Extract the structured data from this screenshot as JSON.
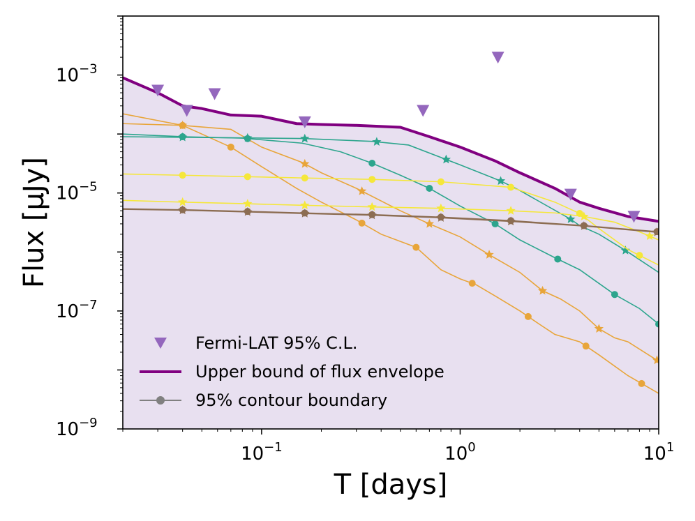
{
  "chart_data": {
    "type": "line",
    "xlabel": "T [days]",
    "ylabel": "Flux [μJy]",
    "xscale": "log",
    "yscale": "log",
    "xlim": [
      0.02,
      10
    ],
    "ylim": [
      1e-09,
      0.01
    ],
    "x_ticks": [
      {
        "value": 0.1,
        "base": "10",
        "exp": "−1"
      },
      {
        "value": 1,
        "base": "10",
        "exp": "0"
      },
      {
        "value": 10,
        "base": "10",
        "exp": "1"
      }
    ],
    "y_ticks": [
      {
        "value": 1e-09,
        "base": "10",
        "exp": "−9"
      },
      {
        "value": 1e-07,
        "base": "10",
        "exp": "−7"
      },
      {
        "value": 1e-05,
        "base": "10",
        "exp": "−5"
      },
      {
        "value": 0.001,
        "base": "10",
        "exp": "−3"
      }
    ],
    "envelope_fill_color": "#e8e0f0",
    "fermi_upper_limits": {
      "name": "Fermi-LAT 95% C.L.",
      "color": "#9467bd",
      "x": [
        0.03,
        0.042,
        0.058,
        0.165,
        0.65,
        1.55,
        3.6,
        7.5
      ],
      "y": [
        0.00055,
        0.00025,
        0.00048,
        0.00016,
        0.00025,
        0.002,
        9.5e-06,
        4e-06
      ]
    },
    "upper_bound": {
      "name": "Upper bound of flux envelope",
      "color": "#800080",
      "x": [
        0.02,
        0.03,
        0.04,
        0.05,
        0.07,
        0.1,
        0.15,
        0.2,
        0.3,
        0.5,
        0.7,
        1.0,
        1.5,
        2.0,
        3.0,
        4.0,
        5.0,
        7.0,
        10.0
      ],
      "y": [
        0.0009,
        0.0005,
        0.0003,
        0.00027,
        0.00021,
        0.0002,
        0.00015,
        0.000145,
        0.00014,
        0.00013,
        9e-05,
        6e-05,
        3.5e-05,
        2.2e-05,
        1.2e-05,
        7e-06,
        5.5e-06,
        4e-06,
        3.3e-06
      ]
    },
    "contour_legend": {
      "name": "95% contour boundary",
      "color": "#808080"
    },
    "contour_curves": [
      {
        "name": "orange-circle",
        "color": "#e8a53a",
        "marker": "circle",
        "x": [
          0.02,
          0.04,
          0.07,
          0.1,
          0.15,
          0.2,
          0.3,
          0.4,
          0.6,
          0.8,
          1.0,
          1.2,
          1.5,
          2.0,
          2.5,
          3.0,
          4.0,
          5.0,
          7.0,
          10.0
        ],
        "y": [
          0.00022,
          0.00014,
          6e-05,
          2.8e-05,
          1.2e-05,
          7e-06,
          3.5e-06,
          2e-06,
          1.2e-06,
          5e-07,
          3.5e-07,
          2.8e-07,
          1.8e-07,
          1e-07,
          6e-08,
          4e-08,
          3e-08,
          1.8e-08,
          8e-09,
          4e-09
        ],
        "markers_x": [
          0.04,
          0.07,
          0.32,
          0.6,
          1.15,
          2.2,
          4.3,
          8.2
        ]
      },
      {
        "name": "orange-star",
        "color": "#e8a53a",
        "marker": "star",
        "x": [
          0.02,
          0.04,
          0.07,
          0.1,
          0.16,
          0.2,
          0.3,
          0.5,
          0.7,
          1.0,
          1.4,
          2.0,
          2.6,
          3.2,
          4.0,
          5.0,
          6.0,
          7.0,
          10.0
        ],
        "y": [
          0.00015,
          0.00014,
          0.00012,
          6e-05,
          3.3e-05,
          2.2e-05,
          1.2e-05,
          5e-06,
          3e-06,
          1.8e-06,
          9e-07,
          4.5e-07,
          2.2e-07,
          1.6e-07,
          1e-07,
          5e-08,
          3.5e-08,
          3e-08,
          1.4e-08
        ],
        "markers_x": [
          0.04,
          0.165,
          0.32,
          0.7,
          1.4,
          2.6,
          5.0,
          9.8
        ]
      },
      {
        "name": "teal-circle",
        "color": "#2ca58d",
        "marker": "circle",
        "x": [
          0.02,
          0.04,
          0.08,
          0.16,
          0.25,
          0.36,
          0.5,
          0.7,
          1.0,
          1.5,
          2.0,
          3.0,
          4.0,
          6.0,
          8.0,
          10.0
        ],
        "y": [
          0.0001,
          9e-05,
          8.5e-05,
          7e-05,
          5e-05,
          3.2e-05,
          2e-05,
          1.2e-05,
          6e-06,
          3e-06,
          1.6e-06,
          8e-07,
          5e-07,
          1.9e-07,
          1.1e-07,
          6e-08
        ],
        "markers_x": [
          0.04,
          0.085,
          0.36,
          0.7,
          1.5,
          3.1,
          6.0,
          10.0
        ]
      },
      {
        "name": "teal-star",
        "color": "#2ca58d",
        "marker": "star",
        "x": [
          0.02,
          0.04,
          0.08,
          0.16,
          0.36,
          0.55,
          0.8,
          1.0,
          1.6,
          2.0,
          3.6,
          4.0,
          5.0,
          7.0,
          10.0
        ],
        "y": [
          9e-05,
          8.8e-05,
          8.6e-05,
          8.4e-05,
          7.5e-05,
          6.5e-05,
          4e-05,
          3e-05,
          1.6e-05,
          1.1e-05,
          3.6e-06,
          2.8e-06,
          2e-06,
          1e-06,
          4.5e-07
        ],
        "markers_x": [
          0.04,
          0.085,
          0.165,
          0.38,
          0.85,
          1.6,
          3.6,
          6.8
        ]
      },
      {
        "name": "yellow-circle",
        "color": "#f5e73a",
        "marker": "circle",
        "x": [
          0.02,
          0.04,
          0.08,
          0.16,
          0.36,
          0.8,
          1.8,
          3.0,
          4.0,
          5.0,
          7.0,
          10.0
        ],
        "y": [
          2.1e-05,
          2e-05,
          1.9e-05,
          1.8e-05,
          1.7e-05,
          1.55e-05,
          1.25e-05,
          7e-06,
          4.5e-06,
          2.5e-06,
          1.1e-06,
          6e-07
        ],
        "markers_x": [
          0.04,
          0.085,
          0.165,
          0.36,
          0.8,
          1.8,
          4.0,
          8.0
        ]
      },
      {
        "name": "yellow-star",
        "color": "#f5e73a",
        "marker": "star",
        "x": [
          0.02,
          0.04,
          0.08,
          0.16,
          0.36,
          0.8,
          1.8,
          3.0,
          4.2,
          6.0,
          8.0,
          10.0
        ],
        "y": [
          7.5e-06,
          7e-06,
          6.6e-06,
          6.2e-06,
          5.8e-06,
          5.5e-06,
          5e-06,
          4.6e-06,
          4e-06,
          3.2e-06,
          2.2e-06,
          1.6e-06
        ],
        "markers_x": [
          0.04,
          0.085,
          0.165,
          0.36,
          0.8,
          1.8,
          4.2,
          9.0
        ]
      },
      {
        "name": "brown-circle",
        "color": "#8c6d52",
        "marker": "circle",
        "x": [
          0.02,
          0.04,
          0.08,
          0.16,
          0.36,
          0.8,
          1.8,
          4.2,
          10.0
        ],
        "y": [
          5.4e-06,
          5.2e-06,
          4.9e-06,
          4.6e-06,
          4.3e-06,
          3.9e-06,
          3.4e-06,
          2.8e-06,
          2.2e-06
        ],
        "markers_x": [
          0.04,
          0.085,
          0.165,
          0.36,
          0.8,
          1.8,
          4.2,
          9.8
        ]
      },
      {
        "name": "brown-star",
        "color": "#8c6d52",
        "marker": "star",
        "x": [
          0.02,
          0.04,
          0.08,
          0.16,
          0.36,
          0.8,
          1.8,
          4.2,
          10.0
        ],
        "y": [
          5.3e-06,
          5.1e-06,
          4.8e-06,
          4.5e-06,
          4.2e-06,
          3.8e-06,
          3.3e-06,
          2.75e-06,
          2.15e-06
        ],
        "markers_x": [
          0.04,
          0.085,
          0.165,
          0.36,
          0.8,
          1.8,
          4.2,
          9.8
        ]
      }
    ]
  }
}
